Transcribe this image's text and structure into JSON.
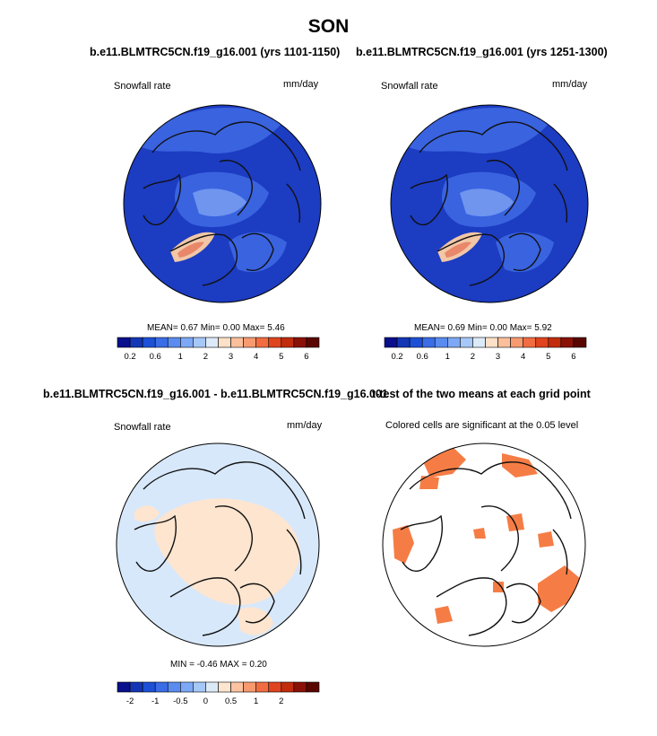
{
  "main_title": "SON",
  "colors": {
    "map_dark": "#1c3cc2",
    "map_mid": "#3a63e0",
    "map_light": "#6f95ef",
    "diff_bg": "#d8e8fb",
    "diff_pos": "#fde5cf",
    "sig": "#f57d45"
  },
  "panels": {
    "top_left": {
      "title": "b.e11.BLMTRC5CN.f19_g16.001 (yrs 1101-1150)",
      "var_label": "Snowfall rate",
      "units": "mm/day",
      "stats": "MEAN=   0.67  Min=   0.00  Max=   5.46"
    },
    "top_right": {
      "title": "b.e11.BLMTRC5CN.f19_g16.001 (yrs 1251-1300)",
      "var_label": "Snowfall rate",
      "units": "mm/day",
      "stats": "MEAN=   0.69  Min=   0.00  Max=   5.92"
    },
    "bottom_left": {
      "title": "b.e11.BLMTRC5CN.f19_g16.001 - b.e11.BLMTRC5CN.f19_g16.001",
      "var_label": "Snowfall rate",
      "units": "mm/day",
      "stats": "MIN =  -0.46  MAX =   0.20"
    },
    "bottom_right": {
      "title": "t-test of the two means at each grid point",
      "subtitle": "Colored cells are significant at the 0.05 level"
    }
  },
  "chart_data": [
    {
      "type": "heatmap",
      "title": "b.e11.BLMTRC5CN.f19_g16.001 (yrs 1101-1150)",
      "variable": "Snowfall rate",
      "units": "mm/day",
      "projection": "north polar stereographic",
      "mean": 0.67,
      "min": 0.0,
      "max": 5.46,
      "colorbar": {
        "levels": [
          0.2,
          0.4,
          0.6,
          0.8,
          1,
          1.5,
          2,
          2.5,
          3,
          3.5,
          4,
          4.5,
          5,
          5.5,
          6
        ],
        "tick_labels": [
          "0.2",
          "0.6",
          "1",
          "2",
          "3",
          "4",
          "5",
          "6"
        ],
        "colors": [
          "#0a0f8c",
          "#1436b4",
          "#1e50d7",
          "#3a6de6",
          "#5a8cf0",
          "#7da8f5",
          "#a6c8f8",
          "#dceaf8",
          "#fde0c8",
          "#fbbf9b",
          "#f79a70",
          "#f26c42",
          "#e0441e",
          "#c12c0d",
          "#8a1106",
          "#5a0600"
        ]
      }
    },
    {
      "type": "heatmap",
      "title": "b.e11.BLMTRC5CN.f19_g16.001 (yrs 1251-1300)",
      "variable": "Snowfall rate",
      "units": "mm/day",
      "projection": "north polar stereographic",
      "mean": 0.69,
      "min": 0.0,
      "max": 5.92,
      "colorbar": {
        "levels": [
          0.2,
          0.4,
          0.6,
          0.8,
          1,
          1.5,
          2,
          2.5,
          3,
          3.5,
          4,
          4.5,
          5,
          5.5,
          6
        ],
        "tick_labels": [
          "0.2",
          "0.6",
          "1",
          "2",
          "3",
          "4",
          "5",
          "6"
        ],
        "colors": [
          "#0a0f8c",
          "#1436b4",
          "#1e50d7",
          "#3a6de6",
          "#5a8cf0",
          "#7da8f5",
          "#a6c8f8",
          "#dceaf8",
          "#fde0c8",
          "#fbbf9b",
          "#f79a70",
          "#f26c42",
          "#e0441e",
          "#c12c0d",
          "#8a1106",
          "#5a0600"
        ]
      }
    },
    {
      "type": "heatmap",
      "title": "b.e11.BLMTRC5CN.f19_g16.001 - b.e11.BLMTRC5CN.f19_g16.001",
      "variable": "Snowfall rate",
      "units": "mm/day",
      "projection": "north polar stereographic",
      "min": -0.46,
      "max": 0.2,
      "colorbar": {
        "levels": [
          -3,
          -2.5,
          -2,
          -1.5,
          -1,
          -0.75,
          -0.5,
          -0.25,
          0,
          0.25,
          0.5,
          0.75,
          1,
          1.5,
          2,
          2.5,
          3
        ],
        "tick_labels": [
          "-2",
          "-1",
          "-0.5",
          "0",
          "0.5",
          "1",
          "2"
        ],
        "colors": [
          "#0a0f8c",
          "#1436b4",
          "#1e50d7",
          "#3a6de6",
          "#5a8cf0",
          "#7da8f5",
          "#a6c8f8",
          "#dceaf8",
          "#fde5cf",
          "#fbc3a0",
          "#f79a70",
          "#f26c42",
          "#e0441e",
          "#c12c0d",
          "#8a1106",
          "#5a0600"
        ]
      }
    },
    {
      "type": "heatmap",
      "title": "t-test of the two means at each grid point",
      "subtitle": "Colored cells are significant at the 0.05 level",
      "projection": "north polar stereographic",
      "significance_level": 0.05
    }
  ]
}
